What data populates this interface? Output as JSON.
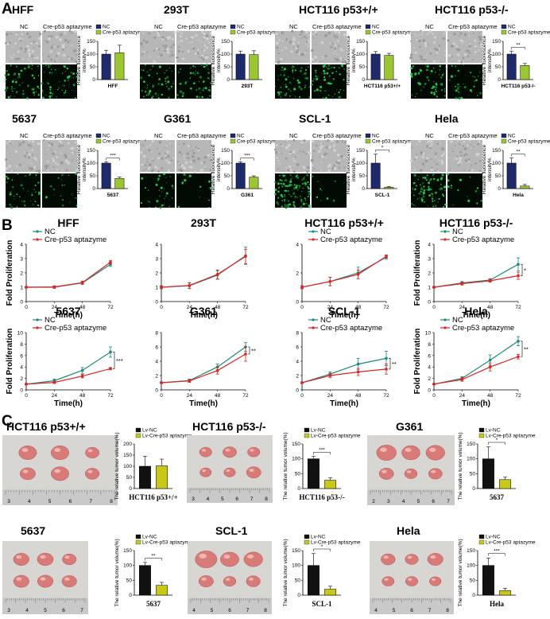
{
  "colors": {
    "nc_bar": "#1f2a6b",
    "apt_bar": "#9bc531",
    "nc_line": "#1a8a7a",
    "apt_line": "#e02222",
    "lv_nc_bar": "#111111",
    "lv_apt_bar": "#c8c81a",
    "gfp": "#0f7a2a",
    "grey": "#b7b7b7"
  },
  "panels": {
    "a_letter": "A",
    "b_letter": "B",
    "c_letter": "C"
  },
  "panel_a": {
    "col_nc": "NC",
    "col_apt": "Cre-p53 aptazyme",
    "ylabel_line1": "Relative fluorescence",
    "ylabel_line2": "intensity%",
    "legend": [
      "NC",
      "Cre-p53 aptazyme"
    ]
  },
  "panel_b": {
    "xlabel": "Time(h)",
    "ylabel": "Fold  Proliferation",
    "legend": [
      "NC",
      "Cre-p53 aptazyme"
    ]
  },
  "panel_c": {
    "ylabel": "The relative tumor volume(%)",
    "legend": [
      "Lv-NC",
      "Lv-Cre-p53 aptazyme"
    ]
  },
  "chart_data": [
    {
      "id": "a1",
      "type": "bar",
      "title": "HFF",
      "categories": [
        "NC",
        "Cre-p53 aptazyme"
      ],
      "values": [
        100,
        105
      ],
      "errors": [
        15,
        30
      ],
      "xlabel": "HFF",
      "ylim": [
        0,
        150
      ],
      "yticks": [
        0,
        50,
        100,
        150
      ],
      "sig": ""
    },
    {
      "id": "a2",
      "type": "bar",
      "title": "293T",
      "categories": [
        "NC",
        "Cre-p53 aptazyme"
      ],
      "values": [
        100,
        98
      ],
      "errors": [
        12,
        15
      ],
      "xlabel": "293T",
      "ylim": [
        0,
        150
      ],
      "yticks": [
        0,
        50,
        100,
        150
      ],
      "sig": ""
    },
    {
      "id": "a3",
      "type": "bar",
      "title": "HCT116 p53+/+",
      "categories": [
        "NC",
        "Cre-p53 aptazyme"
      ],
      "values": [
        100,
        95
      ],
      "errors": [
        10,
        8
      ],
      "xlabel": "HCT116 p53+/+",
      "ylim": [
        0,
        150
      ],
      "yticks": [
        0,
        50,
        100,
        150
      ],
      "sig": ""
    },
    {
      "id": "a4",
      "type": "bar",
      "title": "HCT116 p53-/-",
      "categories": [
        "NC",
        "Cre-p53 aptazyme"
      ],
      "values": [
        100,
        55
      ],
      "errors": [
        12,
        8
      ],
      "xlabel": "HCT116 p53-/-",
      "ylim": [
        0,
        150
      ],
      "yticks": [
        0,
        50,
        100,
        150
      ],
      "sig": "**"
    },
    {
      "id": "a5",
      "type": "bar",
      "title": "5637",
      "categories": [
        "NC",
        "Cre-p53 aptazyme"
      ],
      "values": [
        100,
        40
      ],
      "errors": [
        5,
        5
      ],
      "xlabel": "5637",
      "ylim": [
        0,
        150
      ],
      "yticks": [
        0,
        50,
        100,
        150
      ],
      "sig": "***"
    },
    {
      "id": "a6",
      "type": "bar",
      "title": "G361",
      "categories": [
        "NC",
        "Cre-p53 aptazyme"
      ],
      "values": [
        100,
        45
      ],
      "errors": [
        5,
        5
      ],
      "xlabel": "G361",
      "ylim": [
        0,
        150
      ],
      "yticks": [
        0,
        50,
        100,
        150
      ],
      "sig": "***"
    },
    {
      "id": "a7",
      "type": "bar",
      "title": "SCL-1",
      "categories": [
        "NC",
        "Cre-p53 aptazyme"
      ],
      "values": [
        100,
        5
      ],
      "errors": [
        35,
        3
      ],
      "xlabel": "SCL-1",
      "ylim": [
        0,
        150
      ],
      "yticks": [
        0,
        50,
        100,
        150
      ],
      "sig": "*"
    },
    {
      "id": "a8",
      "type": "bar",
      "title": "Hela",
      "categories": [
        "NC",
        "Cre-p53 aptazyme"
      ],
      "values": [
        100,
        10
      ],
      "errors": [
        20,
        6
      ],
      "xlabel": "Hela",
      "ylim": [
        0,
        150
      ],
      "yticks": [
        0,
        50,
        100,
        150
      ],
      "sig": "**"
    },
    {
      "id": "b1",
      "type": "line",
      "title": "HFF",
      "x": [
        0,
        24,
        48,
        72
      ],
      "series": [
        {
          "name": "NC",
          "values": [
            1,
            1,
            1.3,
            2.6
          ],
          "errors": [
            0.05,
            0.08,
            0.1,
            0.15
          ]
        },
        {
          "name": "Cre-p53 aptazyme",
          "values": [
            1,
            1.02,
            1.32,
            2.75
          ],
          "errors": [
            0.05,
            0.08,
            0.1,
            0.12
          ]
        }
      ],
      "ylim": [
        0,
        4
      ],
      "yticks": [
        0,
        1,
        2,
        3,
        4
      ],
      "xlabel": "Time(h)",
      "ylabel": "Fold  Proliferation",
      "sig": "",
      "legend_pos": "top-left"
    },
    {
      "id": "b2",
      "type": "line",
      "title": "293T",
      "x": [
        0,
        24,
        48,
        72
      ],
      "series": [
        {
          "name": "NC",
          "values": [
            1,
            1.1,
            1.85,
            3.2
          ],
          "errors": [
            0.1,
            0.2,
            0.3,
            0.6
          ]
        },
        {
          "name": "Cre-p53 aptazyme",
          "values": [
            1,
            1.12,
            1.9,
            3.15
          ],
          "errors": [
            0.1,
            0.2,
            0.3,
            0.5
          ]
        }
      ],
      "ylim": [
        0,
        4
      ],
      "yticks": [
        0,
        1,
        2,
        3,
        4
      ],
      "xlabel": "Time(h)",
      "ylabel": "",
      "sig": "",
      "legend_pos": "none"
    },
    {
      "id": "b3",
      "type": "line",
      "title": "HCT116 p53+/+",
      "x": [
        0,
        24,
        48,
        72
      ],
      "series": [
        {
          "name": "NC",
          "values": [
            1,
            1.4,
            2,
            3.1
          ],
          "errors": [
            0.1,
            0.3,
            0.4,
            0.15
          ]
        },
        {
          "name": "Cre-p53 aptazyme",
          "values": [
            1,
            1.4,
            1.9,
            3.15
          ],
          "errors": [
            0.1,
            0.3,
            0.3,
            0.1
          ]
        }
      ],
      "ylim": [
        0,
        4
      ],
      "yticks": [
        0,
        2,
        4
      ],
      "xlabel": "Time(h)",
      "ylabel": "",
      "sig": "",
      "legend_pos": "top-left"
    },
    {
      "id": "b4",
      "type": "line",
      "title": "HCT116 p53-/-",
      "x": [
        0,
        24,
        48,
        72
      ],
      "series": [
        {
          "name": "NC",
          "values": [
            1,
            1.3,
            1.5,
            2.6
          ],
          "errors": [
            0.05,
            0.1,
            0.1,
            0.45
          ]
        },
        {
          "name": "Cre-p53 aptazyme",
          "values": [
            1,
            1.25,
            1.45,
            1.8
          ],
          "errors": [
            0.05,
            0.1,
            0.1,
            0.25
          ]
        }
      ],
      "ylim": [
        0,
        4
      ],
      "yticks": [
        0,
        1,
        2,
        3,
        4
      ],
      "xlabel": "Time(h)",
      "ylabel": "Fold  Proliferation",
      "sig": "*",
      "legend_pos": "top-left"
    },
    {
      "id": "b5",
      "type": "line",
      "title": "5637",
      "x": [
        0,
        24,
        48,
        72
      ],
      "series": [
        {
          "name": "NC",
          "values": [
            1,
            1.6,
            3.4,
            6.6
          ],
          "errors": [
            0.1,
            0.3,
            0.5,
            0.9
          ]
        },
        {
          "name": "Cre-p53 aptazyme",
          "values": [
            1,
            1.3,
            2.4,
            3.7
          ],
          "errors": [
            0.1,
            0.2,
            0.3,
            0.2
          ]
        }
      ],
      "ylim": [
        0,
        10
      ],
      "yticks": [
        0,
        2,
        4,
        6,
        8,
        10
      ],
      "xlabel": "Time(h)",
      "ylabel": "Fold  Proliferation",
      "sig": "***",
      "legend_pos": "top-left"
    },
    {
      "id": "b6",
      "type": "line",
      "title": "G361",
      "x": [
        0,
        24,
        48,
        72
      ],
      "series": [
        {
          "name": "NC",
          "values": [
            1,
            1.3,
            3.2,
            6
          ],
          "errors": [
            0.1,
            0.2,
            0.4,
            0.6
          ]
        },
        {
          "name": "Cre-p53 aptazyme",
          "values": [
            1,
            1.25,
            2.7,
            5
          ],
          "errors": [
            0.1,
            0.2,
            0.5,
            1
          ]
        }
      ],
      "ylim": [
        0,
        8
      ],
      "yticks": [
        0,
        2,
        4,
        6,
        8
      ],
      "xlabel": "Time(h)",
      "ylabel": "",
      "sig": "**",
      "legend_pos": "none"
    },
    {
      "id": "b7",
      "type": "line",
      "title": "SCL-1",
      "x": [
        0,
        24,
        48,
        72
      ],
      "series": [
        {
          "name": "NC",
          "values": [
            1,
            2.2,
            3.6,
            4.4
          ],
          "errors": [
            0.1,
            0.3,
            0.8,
            1
          ]
        },
        {
          "name": "Cre-p53 aptazyme",
          "values": [
            1,
            2,
            2.5,
            2.9
          ],
          "errors": [
            0.1,
            0.3,
            0.5,
            0.7
          ]
        }
      ],
      "ylim": [
        0,
        8
      ],
      "yticks": [
        0,
        2,
        4,
        6,
        8
      ],
      "xlabel": "Time(h)",
      "ylabel": "",
      "sig": "**",
      "legend_pos": "top-left"
    },
    {
      "id": "b8",
      "type": "line",
      "title": "Hela",
      "x": [
        0,
        24,
        48,
        72
      ],
      "series": [
        {
          "name": "NC",
          "values": [
            1,
            2,
            5.2,
            8.5
          ],
          "errors": [
            0.1,
            0.3,
            0.9,
            0.8
          ]
        },
        {
          "name": "Cre-p53 aptazyme",
          "values": [
            1,
            1.8,
            4,
            5.8
          ],
          "errors": [
            0.1,
            0.3,
            0.7,
            0.4
          ]
        }
      ],
      "ylim": [
        0,
        10
      ],
      "yticks": [
        0,
        2,
        4,
        6,
        8,
        10
      ],
      "xlabel": "Time(h)",
      "ylabel": "Fold  Proliferation",
      "sig": "**",
      "legend_pos": "top-left"
    },
    {
      "id": "c1",
      "type": "bar",
      "title": "HCT116 p53+/+",
      "categories": [
        "Lv-NC",
        "Lv-Cre-p53 aptazyme"
      ],
      "values": [
        100,
        102
      ],
      "errors": [
        45,
        30
      ],
      "xlabel": "HCT116 p53+/+",
      "ylim": [
        0,
        200
      ],
      "yticks": [
        0,
        50,
        100,
        150,
        200
      ],
      "sig": ""
    },
    {
      "id": "c2",
      "type": "bar",
      "title": "HCT116 p53-/-",
      "categories": [
        "Lv-NC",
        "Lv-Cre-p53 aptazyme"
      ],
      "values": [
        100,
        28
      ],
      "errors": [
        8,
        8
      ],
      "xlabel": "HCT116 p53-/-",
      "ylim": [
        0,
        150
      ],
      "yticks": [
        0,
        50,
        100,
        150
      ],
      "sig": "***"
    },
    {
      "id": "c3",
      "type": "bar",
      "title": "G361",
      "categories": [
        "Lv-NC",
        "Lv-Cre-p53 aptazyme"
      ],
      "values": [
        100,
        30
      ],
      "errors": [
        40,
        8
      ],
      "xlabel": "5637",
      "ylim": [
        0,
        150
      ],
      "yticks": [
        0,
        50,
        100,
        150
      ],
      "sig": "*"
    },
    {
      "id": "c4",
      "type": "bar",
      "title": "5637",
      "categories": [
        "Lv-NC",
        "Lv-Cre-p53 aptazyme"
      ],
      "values": [
        100,
        33
      ],
      "errors": [
        10,
        10
      ],
      "xlabel": "5637",
      "ylim": [
        0,
        150
      ],
      "yticks": [
        0,
        50,
        100,
        150
      ],
      "sig": "**"
    },
    {
      "id": "c5",
      "type": "bar",
      "title": "SCL-1",
      "categories": [
        "Lv-NC",
        "Lv-Cre-p53 aptazyme"
      ],
      "values": [
        100,
        20
      ],
      "errors": [
        40,
        10
      ],
      "xlabel": "SCL-1",
      "ylim": [
        0,
        150
      ],
      "yticks": [
        0,
        50,
        100,
        150
      ],
      "sig": "*"
    },
    {
      "id": "c6",
      "type": "bar",
      "title": "Hela",
      "categories": [
        "Lv-NC",
        "Lv-Cre-p53 aptazyme"
      ],
      "values": [
        100,
        15
      ],
      "errors": [
        25,
        8
      ],
      "xlabel": "Hela",
      "ylim": [
        0,
        150
      ],
      "yticks": [
        0,
        50,
        100,
        150
      ],
      "sig": "***"
    }
  ]
}
